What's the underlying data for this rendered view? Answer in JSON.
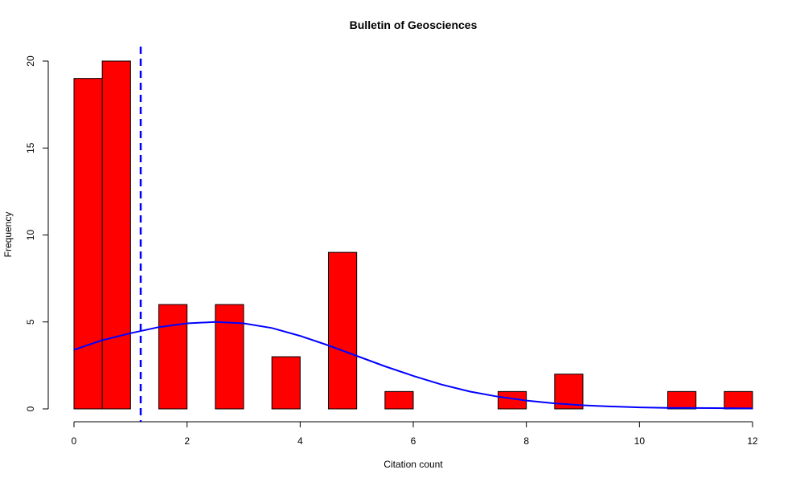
{
  "chart_data": {
    "type": "bar",
    "title": "Bulletin of Geosciences",
    "xlabel": "Citation count",
    "ylabel": "Frequency",
    "xlim": [
      0,
      12
    ],
    "ylim": [
      0,
      20
    ],
    "x_ticks": [
      0,
      2,
      4,
      6,
      8,
      10,
      12
    ],
    "y_ticks": [
      0,
      5,
      10,
      15,
      20
    ],
    "bins": [
      {
        "x0": 0.0,
        "x1": 0.5,
        "count": 19
      },
      {
        "x0": 0.5,
        "x1": 1.0,
        "count": 20
      },
      {
        "x0": 1.5,
        "x1": 2.0,
        "count": 6
      },
      {
        "x0": 2.5,
        "x1": 3.0,
        "count": 6
      },
      {
        "x0": 3.5,
        "x1": 4.0,
        "count": 3
      },
      {
        "x0": 4.5,
        "x1": 5.0,
        "count": 9
      },
      {
        "x0": 5.5,
        "x1": 6.0,
        "count": 1
      },
      {
        "x0": 7.5,
        "x1": 8.0,
        "count": 1
      },
      {
        "x0": 8.5,
        "x1": 9.0,
        "count": 2
      },
      {
        "x0": 10.5,
        "x1": 11.0,
        "count": 1
      },
      {
        "x0": 11.5,
        "x1": 12.0,
        "count": 1
      }
    ],
    "mean_line": {
      "x": 1.18,
      "style": "dashed"
    },
    "density_curve": {
      "x": [
        0,
        0.5,
        1,
        1.5,
        2,
        2.5,
        3,
        3.5,
        4,
        4.5,
        5,
        5.5,
        6,
        6.5,
        7,
        7.5,
        8,
        8.5,
        9,
        9.5,
        10,
        10.5,
        11,
        11.5,
        12
      ],
      "y": [
        3.4,
        3.95,
        4.35,
        4.7,
        4.92,
        5.0,
        4.92,
        4.65,
        4.2,
        3.65,
        3.05,
        2.45,
        1.9,
        1.4,
        1.0,
        0.7,
        0.48,
        0.32,
        0.21,
        0.14,
        0.09,
        0.06,
        0.05,
        0.04,
        0.03
      ]
    },
    "colors": {
      "bars": "#ff0000",
      "bar_border": "#000000",
      "curve": "#0000ff",
      "mean_line": "#0000ff"
    },
    "grid": false
  }
}
